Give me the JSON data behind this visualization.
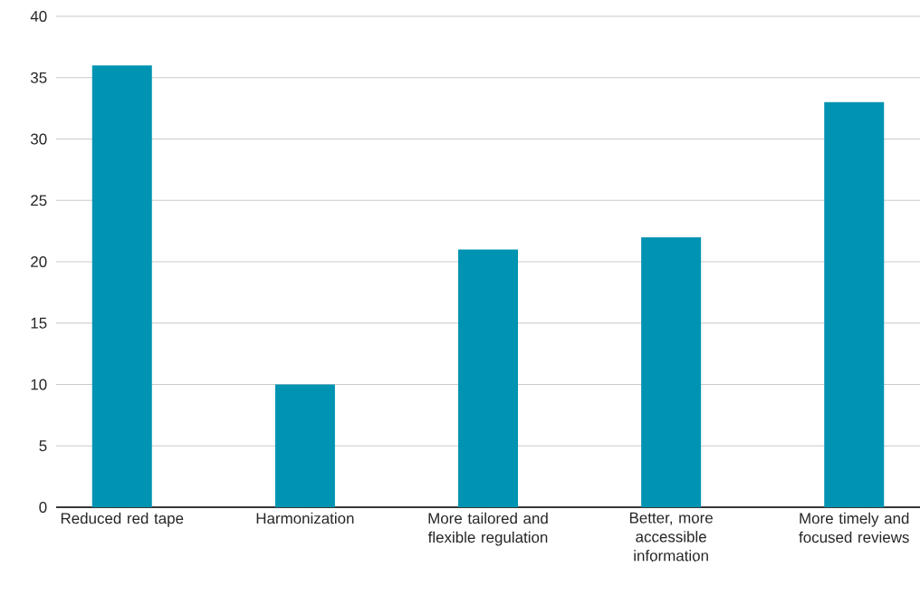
{
  "chart_data": {
    "type": "bar",
    "categories": [
      "Reduced red tape",
      "Harmonization",
      "More tailored and flexible regulation",
      "Better, more accessible information",
      "More timely and focused reviews"
    ],
    "values": [
      36,
      10,
      21,
      22,
      33
    ],
    "color": "#0093b2",
    "ylim": [
      0,
      40
    ],
    "yticks": [
      0,
      5,
      10,
      15,
      20,
      25,
      30,
      35,
      40
    ],
    "grid": "y"
  }
}
